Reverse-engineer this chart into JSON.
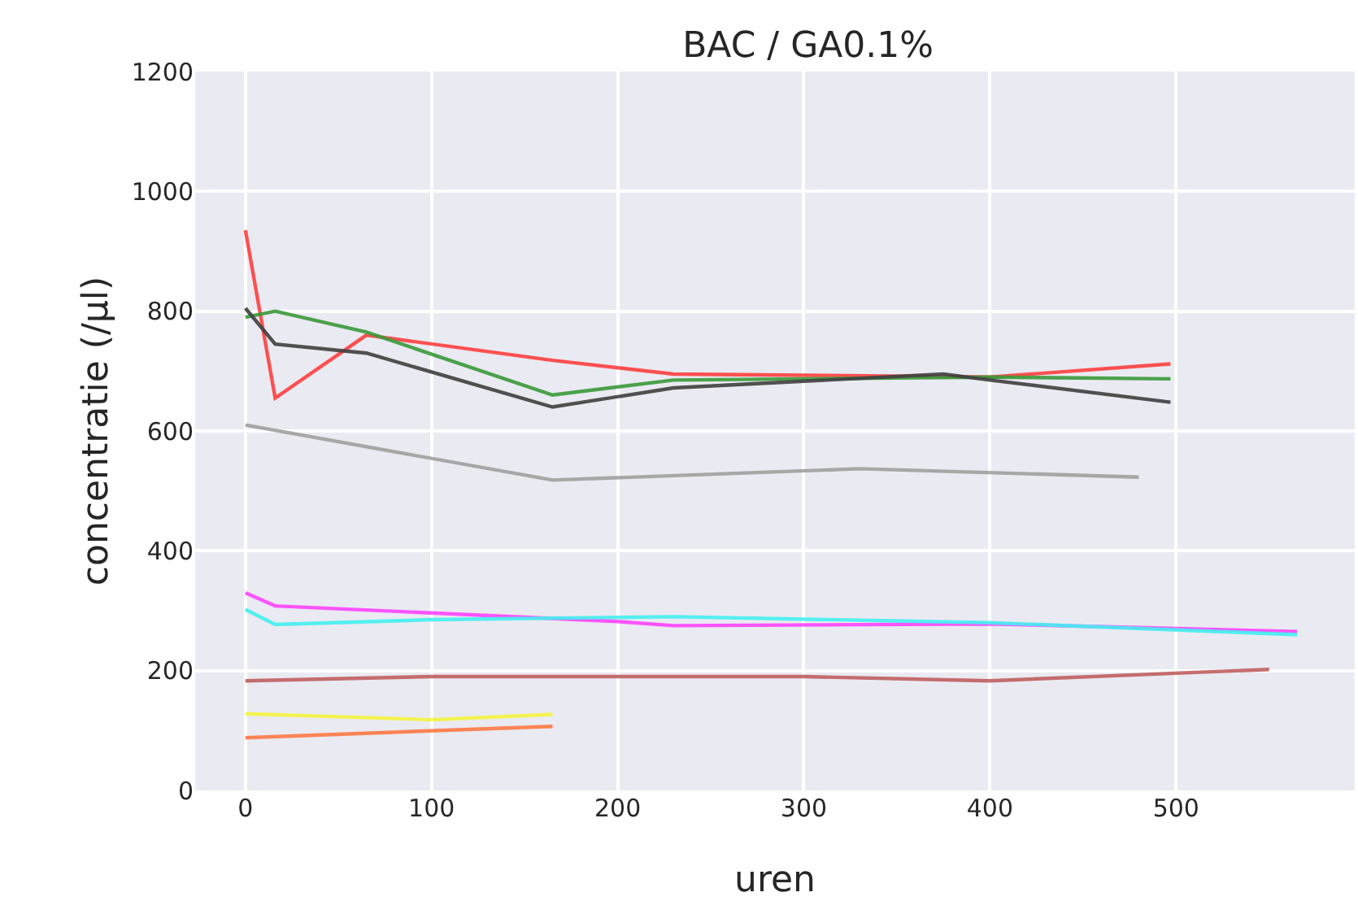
{
  "chart_data": {
    "type": "line",
    "title": "BAC / GA0.1%",
    "xlabel": "uren",
    "ylabel": "concentratie (/µl)",
    "xlim": [
      -27,
      596
    ],
    "xticks": [
      0,
      100,
      200,
      300,
      400,
      500
    ],
    "ylim": [
      0,
      1200
    ],
    "yticks": [
      0,
      200,
      400,
      600,
      800,
      1000,
      1200
    ],
    "grid": true,
    "marker": "none",
    "line_style": "solid",
    "series": [
      {
        "color": "#ff4040",
        "x": [
          0,
          16,
          65,
          165,
          230,
          400,
          497
        ],
        "values": [
          935,
          655,
          760,
          718,
          695,
          690,
          712
        ]
      },
      {
        "color": "#3a9a3a",
        "x": [
          0,
          16,
          65,
          165,
          230,
          400,
          497
        ],
        "values": [
          790,
          800,
          765,
          660,
          685,
          690,
          687
        ]
      },
      {
        "color": "#404040",
        "x": [
          0,
          16,
          65,
          165,
          230,
          375,
          400,
          497
        ],
        "values": [
          805,
          745,
          730,
          640,
          672,
          695,
          685,
          648
        ]
      },
      {
        "color": "#a0a0a0",
        "x": [
          0,
          165,
          330,
          480
        ],
        "values": [
          610,
          518,
          537,
          523
        ]
      },
      {
        "color": "#ff44ff",
        "x": [
          0,
          16,
          200,
          230,
          400,
          565
        ],
        "values": [
          330,
          308,
          282,
          275,
          278,
          265
        ]
      },
      {
        "color": "#44f0f0",
        "x": [
          0,
          16,
          100,
          230,
          400,
          565
        ],
        "values": [
          302,
          277,
          285,
          290,
          280,
          260
        ]
      },
      {
        "color": "#c06060",
        "x": [
          0,
          100,
          300,
          400,
          550
        ],
        "values": [
          183,
          190,
          190,
          183,
          202
        ]
      },
      {
        "color": "#f4f440",
        "x": [
          0,
          100,
          165
        ],
        "values": [
          128,
          118,
          127
        ]
      },
      {
        "color": "#ff7a45",
        "x": [
          0,
          165
        ],
        "values": [
          88,
          107
        ]
      }
    ]
  }
}
